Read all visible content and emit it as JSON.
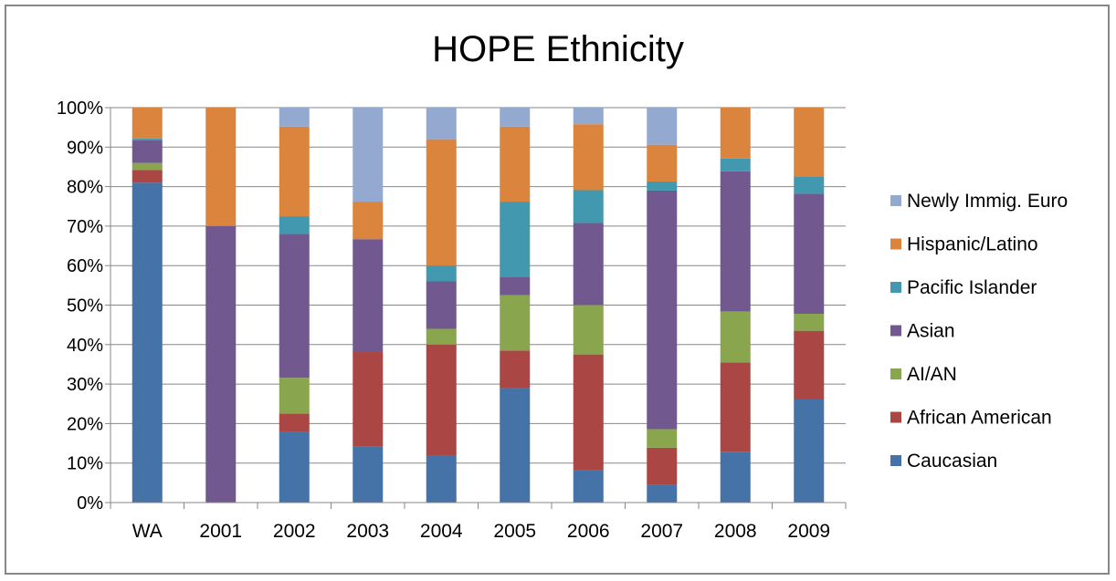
{
  "chart_data": {
    "type": "bar",
    "stacked": "percent",
    "title": "HOPE Ethnicity",
    "xlabel": "",
    "ylabel": "",
    "ylim": [
      0,
      100
    ],
    "yticks": [
      "0%",
      "10%",
      "20%",
      "30%",
      "40%",
      "50%",
      "60%",
      "70%",
      "80%",
      "90%",
      "100%"
    ],
    "grid": "horizontal",
    "legend_position": "right",
    "categories": [
      "WA",
      "2001",
      "2002",
      "2003",
      "2004",
      "2005",
      "2006",
      "2007",
      "2008",
      "2009"
    ],
    "series": [
      {
        "name": "Caucasian",
        "color": "#4572A7",
        "values": [
          81,
          0,
          18,
          14.3,
          12,
          29,
          8.3,
          4.6,
          12.9,
          26.1
        ]
      },
      {
        "name": "African American",
        "color": "#AA4643",
        "values": [
          3.2,
          0,
          4.5,
          23.8,
          28,
          9.5,
          29.2,
          9.3,
          22.6,
          17.4
        ]
      },
      {
        "name": "AI/AN",
        "color": "#89A54E",
        "values": [
          1.8,
          0,
          9.1,
          0,
          4,
          14,
          12.5,
          4.7,
          12.9,
          4.3
        ]
      },
      {
        "name": "Asian",
        "color": "#71588F",
        "values": [
          5.7,
          70,
          36.4,
          28.6,
          12,
          4.7,
          20.8,
          60.4,
          35.5,
          30.4
        ]
      },
      {
        "name": "Pacific Islander",
        "color": "#4198AF",
        "values": [
          0.5,
          0,
          4.5,
          0,
          4,
          19,
          8.3,
          2.3,
          3.2,
          4.4
        ]
      },
      {
        "name": "Hispanic/Latino",
        "color": "#DB843D",
        "values": [
          7.8,
          30,
          22.7,
          9.5,
          32,
          19,
          16.7,
          9.3,
          12.9,
          17.4
        ]
      },
      {
        "name": "Newly Immig. Euro",
        "color": "#93A9CF",
        "values": [
          0,
          0,
          4.8,
          23.8,
          8,
          4.8,
          4.2,
          9.4,
          0,
          0
        ]
      }
    ]
  }
}
